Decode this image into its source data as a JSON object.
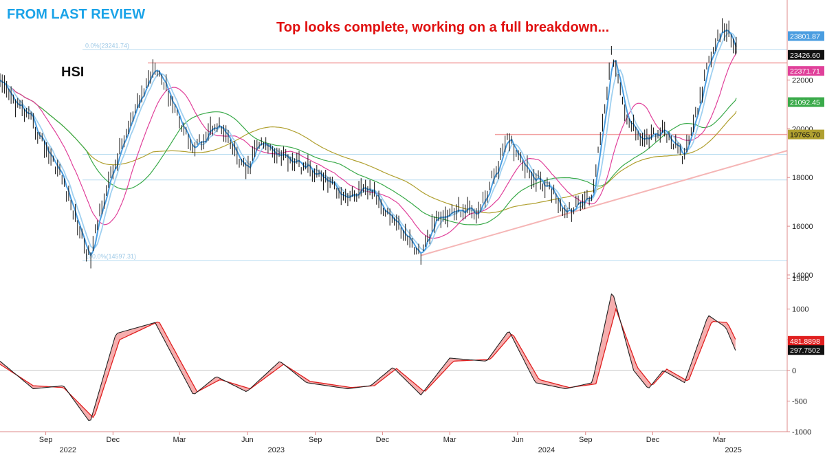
{
  "header": {
    "review_label": "FROM LAST REVIEW",
    "headline": "Top looks complete, working on a full breakdown...",
    "ticker": "HSI"
  },
  "colors": {
    "review_label": "#1aa3e8",
    "headline": "#e01010",
    "ma_short": "#4a9de0",
    "ma_fast": "#9fd0f0",
    "ma_medium": "#e0409a",
    "ma_long": "#3aaa4a",
    "ma_longest": "#b0a030",
    "resistance": "#f2a0a0",
    "trendline": "#f5b5b5",
    "fib_line": "#b8dcf0",
    "osc_fast": "#222222",
    "osc_slow": "#e02020",
    "osc_fill": "#f4a0a0"
  },
  "chart_data": [
    {
      "type": "line",
      "title": "HSI",
      "price_axis": {
        "ylim": [
          14000,
          25000
        ],
        "ticks": [
          14000,
          16000,
          18000,
          20000,
          22000
        ]
      },
      "time_axis": {
        "x_range": [
          "2022-07-01",
          "2025-06-01"
        ],
        "month_ticks": [
          {
            "label": "Sep",
            "date": "2022-09-01"
          },
          {
            "label": "Dec",
            "date": "2022-12-01"
          },
          {
            "label": "Mar",
            "date": "2023-03-01"
          },
          {
            "label": "Jun",
            "date": "2023-06-01"
          },
          {
            "label": "Sep",
            "date": "2023-09-01"
          },
          {
            "label": "Dec",
            "date": "2023-12-01"
          },
          {
            "label": "Mar",
            "date": "2024-03-01"
          },
          {
            "label": "Jun",
            "date": "2024-06-01"
          },
          {
            "label": "Sep",
            "date": "2024-09-01"
          },
          {
            "label": "Dec",
            "date": "2024-12-01"
          },
          {
            "label": "Mar",
            "date": "2025-03-01"
          }
        ],
        "year_labels": [
          {
            "label": "2022",
            "date": "2022-10-01"
          },
          {
            "label": "2023",
            "date": "2023-07-10"
          },
          {
            "label": "2024",
            "date": "2024-07-10"
          },
          {
            "label": "2025",
            "date": "2025-03-20"
          }
        ]
      },
      "price_series": {
        "name": "HSI",
        "dates": [
          "2022-07-01",
          "2022-08-10",
          "2022-09-20",
          "2022-10-31",
          "2022-11-15",
          "2022-12-15",
          "2023-01-27",
          "2023-03-20",
          "2023-04-20",
          "2023-05-31",
          "2023-06-15",
          "2023-07-15",
          "2023-08-20",
          "2023-09-15",
          "2023-10-15",
          "2023-11-15",
          "2023-12-15",
          "2024-01-22",
          "2024-02-10",
          "2024-03-15",
          "2024-04-10",
          "2024-05-20",
          "2024-06-20",
          "2024-07-20",
          "2024-08-05",
          "2024-09-10",
          "2024-10-07",
          "2024-10-25",
          "2024-11-20",
          "2024-12-15",
          "2025-01-13",
          "2025-02-14",
          "2025-03-07",
          "2025-03-14",
          "2025-03-24"
        ],
        "values": [
          21800,
          20400,
          18200,
          14600,
          16900,
          19500,
          22700,
          19100,
          20300,
          18200,
          19400,
          19000,
          18400,
          17900,
          17200,
          17500,
          16300,
          14800,
          16200,
          16700,
          16600,
          19600,
          18100,
          17400,
          16500,
          17300,
          23200,
          20400,
          19600,
          19900,
          18800,
          22600,
          24200,
          23900,
          23426.6
        ]
      },
      "moving_averages": [
        {
          "label": "23801.87",
          "color_key": "ma_short",
          "value": 23801.87
        },
        {
          "label": "22371.71",
          "color_key": "ma_medium",
          "value": 22371.71
        },
        {
          "label": "21092.45",
          "color_key": "ma_long",
          "value": 21092.45
        },
        {
          "label": "19765.70",
          "color_key": "ma_longest",
          "value": 19765.7
        }
      ],
      "last_price_label": "23426.60",
      "levels": {
        "resistance_upper": 22700,
        "resistance_lower": 19765.7,
        "fib_lines": [
          23241.74,
          18950,
          17900,
          14597.31
        ]
      },
      "fib_labels": {
        "top": "0.0%(23241.74)",
        "bottom": "100.0%(14597.31)"
      },
      "trendline": {
        "start_date": "2024-01-22",
        "start_value": 14800,
        "end_date": "2025-06-01",
        "end_value": 19100
      }
    },
    {
      "type": "line",
      "title": "",
      "ylim": [
        -1000,
        1500
      ],
      "ticks": [
        -1000,
        -500,
        0,
        500,
        1000,
        1500
      ],
      "series": [
        {
          "name": "",
          "dates": [
            "2022-07-01",
            "2022-08-15",
            "2022-09-25",
            "2022-10-31",
            "2022-12-05",
            "2023-01-27",
            "2023-03-20",
            "2023-04-20",
            "2023-05-31",
            "2023-07-15",
            "2023-08-20",
            "2023-10-15",
            "2023-11-15",
            "2023-12-15",
            "2024-01-22",
            "2024-03-01",
            "2024-04-20",
            "2024-05-20",
            "2024-06-25",
            "2024-08-05",
            "2024-09-10",
            "2024-10-07",
            "2024-11-05",
            "2024-11-25",
            "2024-12-15",
            "2025-01-13",
            "2025-02-14",
            "2025-03-10",
            "2025-03-24"
          ],
          "values": [
            150,
            -300,
            -250,
            -850,
            600,
            780,
            -400,
            -100,
            -350,
            150,
            -200,
            -300,
            -250,
            50,
            -400,
            200,
            150,
            650,
            -200,
            -300,
            -200,
            1300,
            0,
            -300,
            0,
            -200,
            900,
            700,
            297.75
          ]
        },
        {
          "name": "",
          "dates": [
            "2022-07-01",
            "2022-08-15",
            "2022-09-25",
            "2022-11-05",
            "2022-12-10",
            "2023-02-01",
            "2023-03-25",
            "2023-04-25",
            "2023-06-05",
            "2023-07-20",
            "2023-08-25",
            "2023-10-20",
            "2023-11-20",
            "2023-12-20",
            "2024-01-27",
            "2024-03-06",
            "2024-04-25",
            "2024-05-25",
            "2024-06-30",
            "2024-08-10",
            "2024-09-15",
            "2024-10-12",
            "2024-11-10",
            "2024-11-30",
            "2024-12-20",
            "2025-01-18",
            "2025-02-19",
            "2025-03-12",
            "2025-03-24"
          ],
          "values": [
            100,
            -250,
            -280,
            -780,
            500,
            800,
            -350,
            -150,
            -300,
            100,
            -180,
            -280,
            -250,
            30,
            -350,
            150,
            180,
            600,
            -150,
            -280,
            -220,
            1000,
            50,
            -250,
            20,
            -180,
            800,
            780,
            481.89
          ]
        }
      ],
      "value_labels": [
        "481.8898",
        "297.7502"
      ]
    }
  ]
}
